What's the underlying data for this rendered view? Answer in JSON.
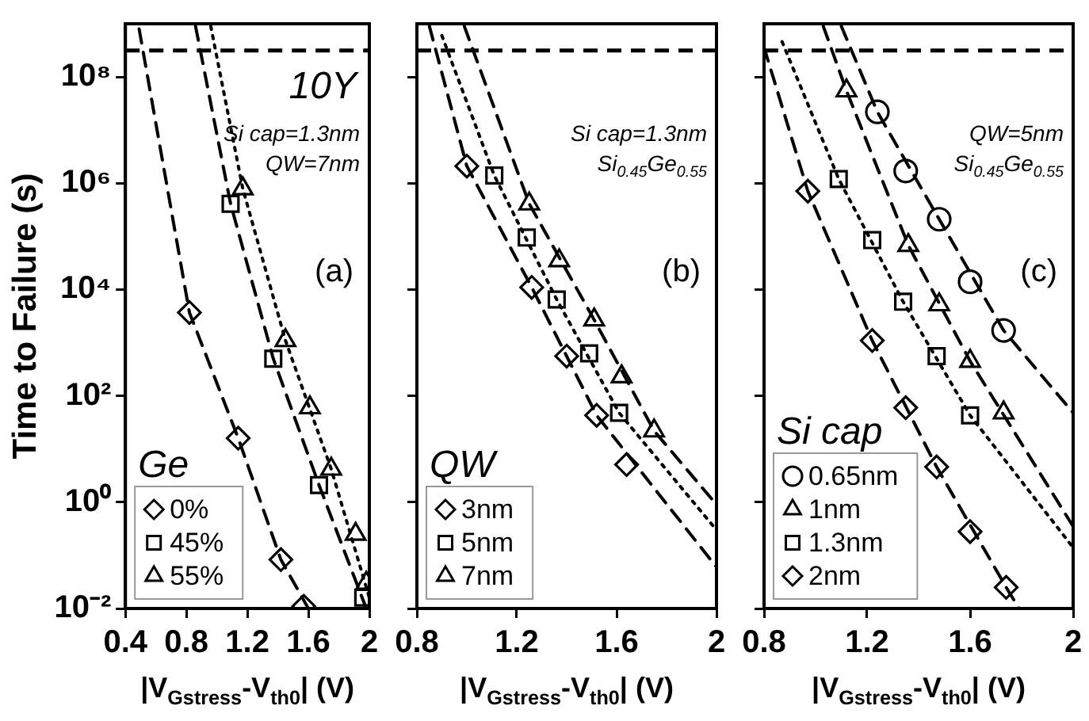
{
  "chart_data": [
    {
      "type": "scatter",
      "ylabel": "Time to Failure (s)",
      "xlabel": "|V$_{Gstress}$-V$_{th0}$| (V)",
      "legend_title": "Ge",
      "legend": "bottom left",
      "log": "y",
      "xlim": [
        0.4,
        2
      ],
      "xticks": [
        0.4,
        0.8,
        1.2,
        1.6,
        2
      ],
      "ylim": [
        0.01,
        1000000000
      ],
      "yticks": [
        {
          "value": 0.01,
          "label": "10⁻²"
        },
        {
          "value": 1,
          "label": "10⁰"
        },
        {
          "value": 100,
          "label": "10²"
        },
        {
          "value": 10000,
          "label": "10⁴"
        },
        {
          "value": 1000000,
          "label": "10⁶"
        },
        {
          "value": 100000000,
          "label": "10⁸"
        }
      ],
      "ref_lines": [
        {
          "axis": "y",
          "value": 315000000,
          "label": "10Y",
          "line_style": "dashed"
        }
      ],
      "annotations": [
        "Si cap=1.3nm",
        "QW=7nm",
        "(a)"
      ],
      "series": [
        {
          "type": "line",
          "color": "#000000",
          "line_style": "dashed",
          "x": [
            0.49,
            0.82,
            1.14,
            1.42,
            1.6
          ],
          "values": [
            800000000,
            3700,
            16,
            0.083,
            0.01
          ]
        },
        {
          "type": "line",
          "color": "#000000",
          "line_style": "dashed",
          "x": [
            0.86,
            1.09,
            1.37,
            1.67,
            1.98
          ],
          "values": [
            900000000,
            410000,
            500,
            2.1,
            0.01
          ]
        },
        {
          "type": "line",
          "color": "#000000",
          "line_style": "dotted",
          "x": [
            0.96,
            1.17,
            1.45,
            1.75,
            2.0
          ],
          "values": [
            900000000,
            790000,
            1100,
            4.2,
            0.016
          ]
        },
        {
          "type": "scatter",
          "name": "0%",
          "color": "#000000",
          "marker": "diamond",
          "x": [
            0.82,
            1.14,
            1.42,
            1.57
          ],
          "values": [
            3700,
            16,
            0.083,
            0.011
          ]
        },
        {
          "type": "scatter",
          "name": "45%",
          "color": "#000000",
          "marker": "square",
          "x": [
            1.09,
            1.37,
            1.67,
            1.96
          ],
          "values": [
            410000,
            500,
            2.1,
            0.016
          ]
        },
        {
          "type": "scatter",
          "name": "55%",
          "color": "#000000",
          "marker": "triangle",
          "x": [
            1.17,
            1.45,
            1.61,
            1.75,
            1.91,
            1.98
          ],
          "values": [
            790000,
            1100,
            60,
            4.2,
            0.25,
            0.03
          ]
        }
      ]
    },
    {
      "type": "scatter",
      "xlabel": "|V$_{Gstress}$-V$_{th0}$| (V)",
      "legend_title": "QW",
      "legend": "bottom left",
      "log": "y",
      "tick_labels": "x",
      "xlim": [
        0.8,
        2
      ],
      "xticks": [
        0.8,
        1.2,
        1.6,
        2
      ],
      "ylim": [
        0.01,
        1000000000
      ],
      "yticks": [
        {
          "value": 0.01,
          "label": null
        },
        {
          "value": 1,
          "label": null
        },
        {
          "value": 100,
          "label": null
        },
        {
          "value": 10000,
          "label": null
        },
        {
          "value": 1000000,
          "label": null
        },
        {
          "value": 100000000,
          "label": null
        }
      ],
      "ref_lines": [
        {
          "axis": "y",
          "value": 315000000,
          "line_style": "dashed"
        }
      ],
      "annotations": [
        "Si cap=1.3nm",
        "Si$_{0.45}$Ge$_{0.55}$",
        "(b)"
      ],
      "series": [
        {
          "type": "line",
          "color": "#000000",
          "line_style": "dashed",
          "x": [
            0.85,
            1.0,
            1.26,
            1.52,
            2.0
          ],
          "values": [
            900000000,
            2100000,
            11000,
            43,
            0.06
          ]
        },
        {
          "type": "line",
          "color": "#000000",
          "line_style": "dotted",
          "x": [
            0.9,
            1.11,
            1.36,
            1.61,
            2.0
          ],
          "values": [
            600000000,
            1400000,
            6500,
            48,
            0.3
          ]
        },
        {
          "type": "line",
          "color": "#000000",
          "line_style": "dashed",
          "x": [
            0.99,
            1.25,
            1.51,
            1.75,
            2.0
          ],
          "values": [
            900000000,
            410000,
            2700,
            22,
            0.9
          ]
        },
        {
          "type": "scatter",
          "name": "3nm",
          "color": "#000000",
          "marker": "diamond",
          "x": [
            1.0,
            1.26,
            1.4,
            1.52,
            1.64
          ],
          "values": [
            2100000,
            11000,
            560,
            43,
            5.1
          ]
        },
        {
          "type": "scatter",
          "name": "5nm",
          "color": "#000000",
          "marker": "square",
          "x": [
            1.11,
            1.24,
            1.36,
            1.49,
            1.61
          ],
          "values": [
            1400000,
            95000,
            6500,
            630,
            48
          ]
        },
        {
          "type": "scatter",
          "name": "7nm",
          "color": "#000000",
          "marker": "triangle",
          "x": [
            1.25,
            1.37,
            1.51,
            1.62,
            1.75
          ],
          "values": [
            410000,
            35000,
            2700,
            230,
            22
          ]
        }
      ]
    },
    {
      "type": "scatter",
      "xlabel": "|V$_{Gstress}$-V$_{th0}$| (V)",
      "legend_title": "Si cap",
      "legend": "bottom left",
      "log": "y",
      "tick_labels": "x",
      "xlim": [
        0.8,
        2
      ],
      "xticks": [
        0.8,
        1.2,
        1.6,
        2
      ],
      "ylim": [
        0.01,
        1000000000
      ],
      "yticks": [
        {
          "value": 0.01,
          "label": null
        },
        {
          "value": 1,
          "label": null
        },
        {
          "value": 100,
          "label": null
        },
        {
          "value": 10000,
          "label": null
        },
        {
          "value": 1000000,
          "label": null
        },
        {
          "value": 100000000,
          "label": null
        }
      ],
      "ref_lines": [
        {
          "axis": "y",
          "value": 315000000,
          "line_style": "dashed"
        }
      ],
      "annotations": [
        "QW=5nm",
        "Si$_{0.45}$Ge$_{0.55}$",
        "(c)"
      ],
      "series": [
        {
          "type": "line",
          "color": "#000000",
          "line_style": "dashed",
          "x": [
            1.1,
            1.24,
            1.48,
            1.73,
            2.0
          ],
          "values": [
            900000000,
            22000000,
            210000,
            1700,
            48
          ]
        },
        {
          "type": "line",
          "color": "#000000",
          "line_style": "dashed",
          "x": [
            1.03,
            1.12,
            1.36,
            1.6,
            2.0
          ],
          "values": [
            900000000,
            55000000,
            68000,
            450,
            0.35
          ]
        },
        {
          "type": "line",
          "color": "#000000",
          "line_style": "dotted",
          "x": [
            0.87,
            1.09,
            1.34,
            1.6,
            2.0
          ],
          "values": [
            460000000,
            1200000,
            5900,
            43,
            0.14
          ]
        },
        {
          "type": "line",
          "color": "#000000",
          "line_style": "dashed",
          "x": [
            0.8,
            0.97,
            1.22,
            1.47,
            1.74,
            1.79
          ],
          "values": [
            360000000,
            710000,
            1100,
            4.6,
            0.025,
            0.01
          ]
        },
        {
          "type": "scatter",
          "name": "0.65nm",
          "color": "#000000",
          "marker": "circle",
          "x": [
            1.24,
            1.35,
            1.48,
            1.6,
            1.73
          ],
          "values": [
            22000000,
            1700000,
            210000,
            14000,
            1700
          ]
        },
        {
          "type": "scatter",
          "name": "1nm",
          "color": "#000000",
          "marker": "triangle",
          "x": [
            1.12,
            1.36,
            1.48,
            1.6,
            1.73
          ],
          "values": [
            55000000,
            68000,
            5200,
            450,
            48
          ]
        },
        {
          "type": "scatter",
          "name": "1.3nm",
          "color": "#000000",
          "marker": "square",
          "x": [
            1.09,
            1.22,
            1.34,
            1.47,
            1.6
          ],
          "values": [
            1200000,
            85000,
            5900,
            560,
            43
          ]
        },
        {
          "type": "scatter",
          "name": "2nm",
          "color": "#000000",
          "marker": "diamond",
          "x": [
            0.97,
            1.22,
            1.35,
            1.47,
            1.6,
            1.74
          ],
          "values": [
            710000,
            1100,
            60,
            4.6,
            0.28,
            0.025
          ]
        }
      ]
    }
  ]
}
